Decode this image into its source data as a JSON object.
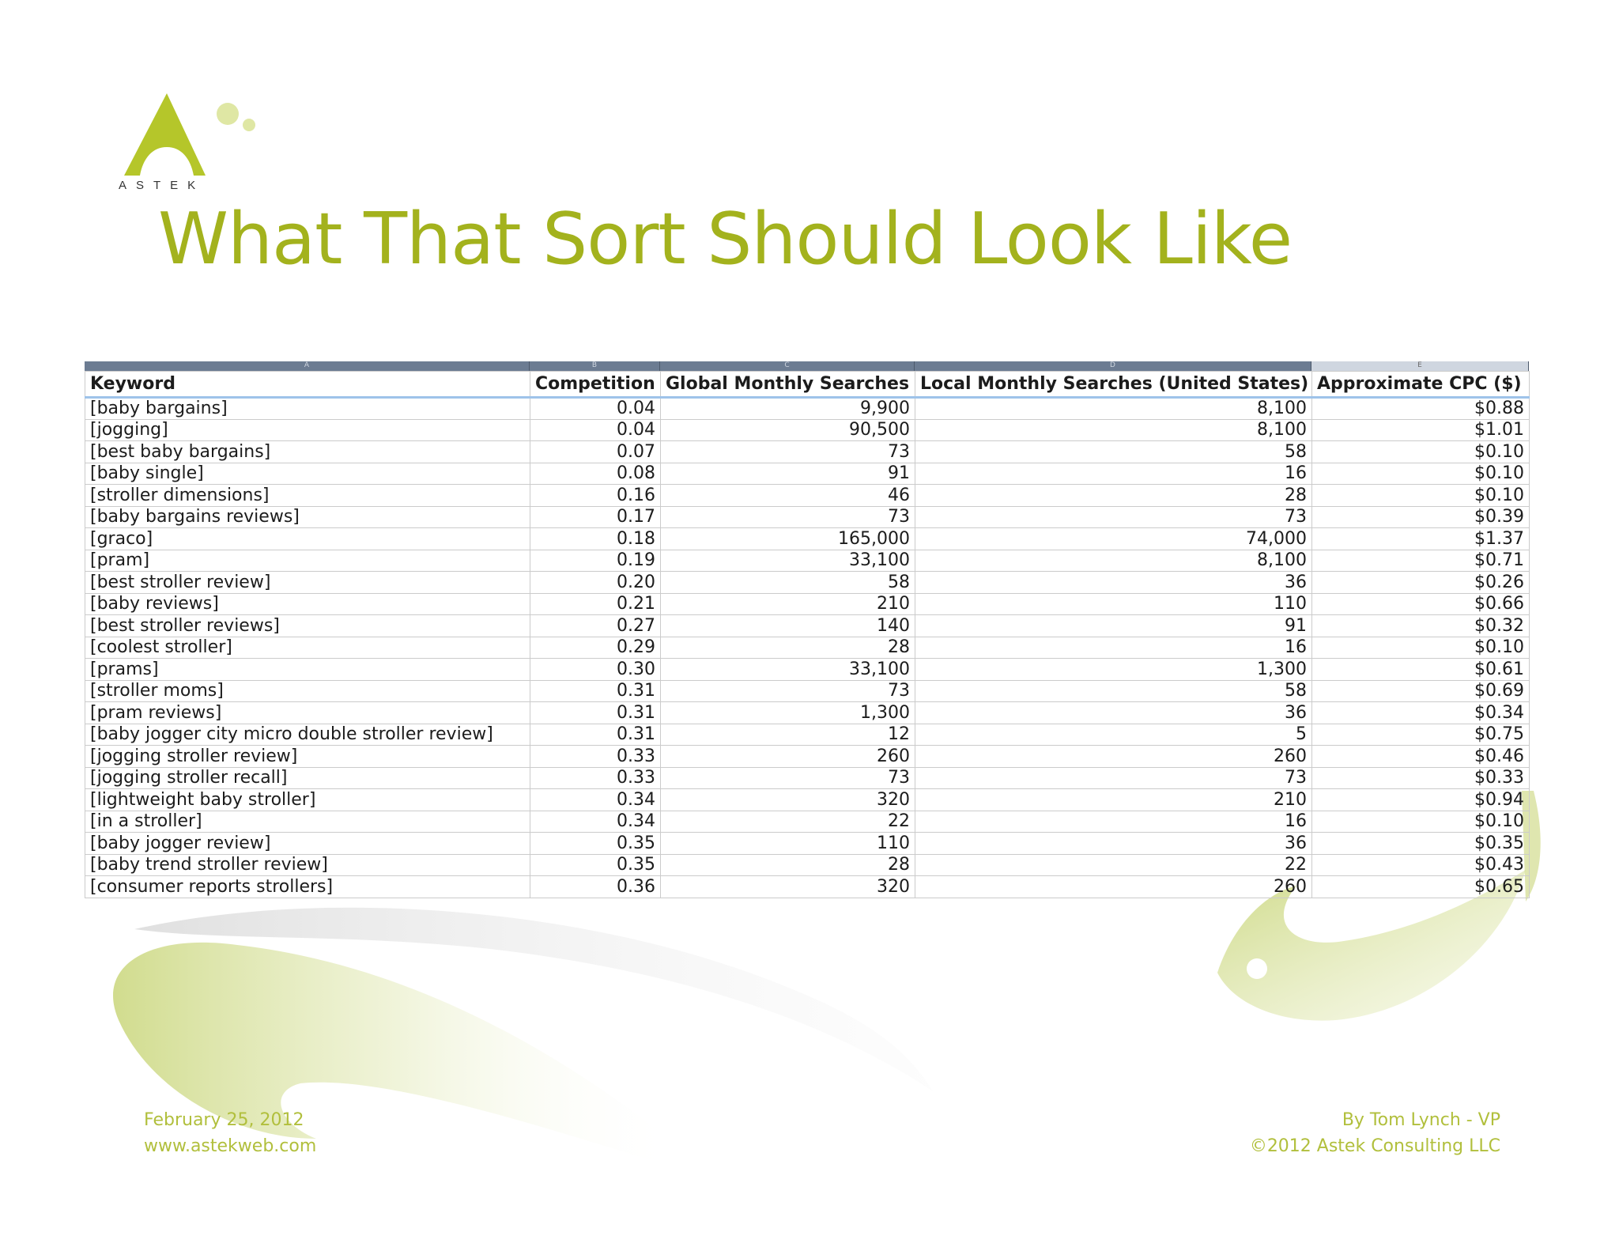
{
  "logo": {
    "wordmark": "ASTEK"
  },
  "title": "What That Sort Should Look Like",
  "sheet": {
    "column_letters": [
      "A",
      "B",
      "C",
      "D",
      "E"
    ],
    "headers": [
      "Keyword",
      "Competition",
      "Global Monthly Searches",
      "Local Monthly Searches (United States)",
      "Approximate CPC ($)"
    ],
    "rows": [
      [
        "[baby bargains]",
        "0.04",
        "9,900",
        "8,100",
        "$0.88"
      ],
      [
        "[jogging]",
        "0.04",
        "90,500",
        "8,100",
        "$1.01"
      ],
      [
        "[best baby bargains]",
        "0.07",
        "73",
        "58",
        "$0.10"
      ],
      [
        "[baby single]",
        "0.08",
        "91",
        "16",
        "$0.10"
      ],
      [
        "[stroller dimensions]",
        "0.16",
        "46",
        "28",
        "$0.10"
      ],
      [
        "[baby bargains reviews]",
        "0.17",
        "73",
        "73",
        "$0.39"
      ],
      [
        "[graco]",
        "0.18",
        "165,000",
        "74,000",
        "$1.37"
      ],
      [
        "[pram]",
        "0.19",
        "33,100",
        "8,100",
        "$0.71"
      ],
      [
        "[best stroller review]",
        "0.20",
        "58",
        "36",
        "$0.26"
      ],
      [
        "[baby reviews]",
        "0.21",
        "210",
        "110",
        "$0.66"
      ],
      [
        "[best stroller reviews]",
        "0.27",
        "140",
        "91",
        "$0.32"
      ],
      [
        "[coolest stroller]",
        "0.29",
        "28",
        "16",
        "$0.10"
      ],
      [
        "[prams]",
        "0.30",
        "33,100",
        "1,300",
        "$0.61"
      ],
      [
        "[stroller moms]",
        "0.31",
        "73",
        "58",
        "$0.69"
      ],
      [
        "[pram reviews]",
        "0.31",
        "1,300",
        "36",
        "$0.34"
      ],
      [
        "[baby jogger city micro double stroller review]",
        "0.31",
        "12",
        "5",
        "$0.75"
      ],
      [
        "[jogging stroller review]",
        "0.33",
        "260",
        "260",
        "$0.46"
      ],
      [
        "[jogging stroller recall]",
        "0.33",
        "73",
        "73",
        "$0.33"
      ],
      [
        "[lightweight baby stroller]",
        "0.34",
        "320",
        "210",
        "$0.94"
      ],
      [
        "[in a stroller]",
        "0.34",
        "22",
        "16",
        "$0.10"
      ],
      [
        "[baby jogger review]",
        "0.35",
        "110",
        "36",
        "$0.35"
      ],
      [
        "[baby trend stroller review]",
        "0.35",
        "28",
        "22",
        "$0.43"
      ],
      [
        "[consumer reports strollers]",
        "0.36",
        "320",
        "260",
        "$0.65"
      ]
    ]
  },
  "footer": {
    "date": "February  25, 2012",
    "website": "www.astekweb.com",
    "author": "By Tom Lynch - VP",
    "copyright": "©2012  Astek Consulting LLC"
  },
  "colors": {
    "title_green": "#a3b21d",
    "footer_green": "#b1bf3c",
    "logo_green": "#b5c62a",
    "header_underline": "#9ec3ea"
  }
}
